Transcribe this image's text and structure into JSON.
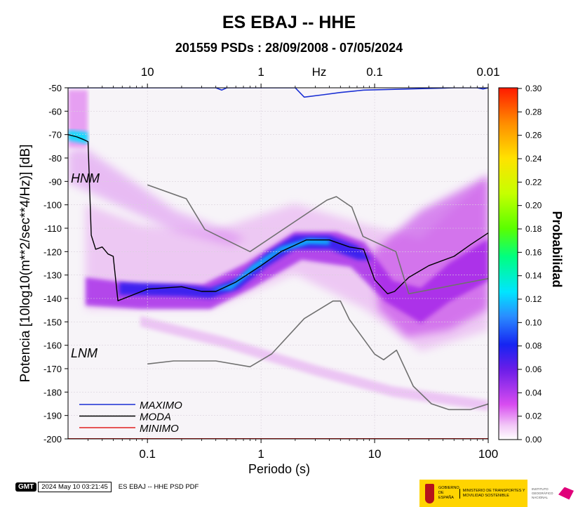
{
  "title": "ES EBAJ -- HHE",
  "subtitle": "201559 PSDs : 28/09/2008 - 07/05/2024",
  "chart_data": {
    "type": "heatmap",
    "title": "ES EBAJ -- HHE",
    "subtitle": "201559 PSDs : 28/09/2008 - 07/05/2024",
    "xlabel": "Periodo (s)",
    "ylabel": "Potencia [10log10(m**2/sec**4/Hz)] [dB]",
    "x_scale": "log",
    "xlim": [
      0.02,
      100
    ],
    "ylim": [
      -200,
      -50
    ],
    "x_ticks": [
      0.1,
      1,
      10,
      100
    ],
    "x_tick_labels": [
      "0.1",
      "1",
      "10",
      "100"
    ],
    "y_ticks": [
      -50,
      -60,
      -70,
      -80,
      -90,
      -100,
      -110,
      -120,
      -130,
      -140,
      -150,
      -160,
      -170,
      -180,
      -190,
      -200
    ],
    "top_axis": {
      "label": "Hz",
      "ticks": [
        10,
        1,
        0.1,
        0.01
      ],
      "tick_labels": [
        "10",
        "1",
        "0.1",
        "0.01"
      ]
    },
    "colorbar": {
      "label": "Probabilidad",
      "min": 0.0,
      "max": 0.3,
      "ticks": [
        "0.30",
        "0.28",
        "0.26",
        "0.24",
        "0.22",
        "0.20",
        "0.18",
        "0.16",
        "0.14",
        "0.12",
        "0.10",
        "0.08",
        "0.06",
        "0.04",
        "0.02",
        "0.00"
      ]
    },
    "annotations": [
      "HNM",
      "LNM"
    ],
    "legend": {
      "placement": "bottom-left",
      "entries": [
        {
          "name": "MAXIMO",
          "color": "#1a2fd4"
        },
        {
          "name": "MODA",
          "color": "#000000"
        },
        {
          "name": "MINIMO",
          "color": "#e02020"
        }
      ]
    },
    "series": [
      {
        "name": "MAXIMO",
        "color": "#1a2fd4",
        "x": [
          0.02,
          0.4,
          0.45,
          0.5,
          2.0,
          2.4,
          3.5,
          5,
          8,
          20,
          50,
          80,
          90,
          100
        ],
        "y": [
          -50,
          -50,
          -51,
          -50,
          -50,
          -54,
          -53,
          -52,
          -51,
          -50.5,
          -50,
          -50,
          -50.5,
          -50
        ]
      },
      {
        "name": "MODA",
        "color": "#000000",
        "x": [
          0.02,
          0.024,
          0.027,
          0.03,
          0.032,
          0.035,
          0.04,
          0.045,
          0.05,
          0.055,
          0.07,
          0.1,
          0.2,
          0.3,
          0.4,
          0.6,
          1,
          1.5,
          2.5,
          4,
          6,
          8,
          10,
          13,
          15,
          20,
          30,
          50,
          70,
          100
        ],
        "y": [
          -70,
          -71,
          -72,
          -73,
          -113,
          -119,
          -118,
          -121,
          -122,
          -141,
          -139,
          -136,
          -135,
          -137,
          -137,
          -133,
          -126,
          -120,
          -115,
          -115,
          -118,
          -119,
          -132,
          -138,
          -137,
          -131,
          -126,
          -122,
          -117,
          -112
        ]
      },
      {
        "name": "MINIMO",
        "color": "#e02020",
        "x": [
          0.02,
          100
        ],
        "y": [
          -200,
          -200
        ]
      },
      {
        "name": "HNM",
        "color": "#707070",
        "x": [
          0.1,
          0.22,
          0.32,
          0.8,
          3.8,
          4.6,
          6.3,
          7.9,
          15.4,
          20,
          100
        ],
        "y": [
          -91.5,
          -97.4,
          -110.5,
          -120,
          -98,
          -96.5,
          -101,
          -113.5,
          -120,
          -138,
          -131.5
        ]
      },
      {
        "name": "LNM",
        "color": "#707070",
        "x": [
          0.1,
          0.17,
          0.4,
          0.8,
          1.24,
          2.4,
          4.3,
          5,
          6,
          10,
          12,
          15.6,
          21.9,
          31.6,
          45,
          70,
          101
        ],
        "y": [
          -168,
          -166.7,
          -166.7,
          -169.2,
          -163.7,
          -148.6,
          -141.1,
          -141.1,
          -149,
          -163.8,
          -166.2,
          -162.1,
          -177.5,
          -185,
          -187.5,
          -187.5,
          -185
        ]
      }
    ]
  },
  "footer": {
    "logo": "GMT",
    "timestamp": "2024 May 10 03:21:45",
    "filename": "ES EBAJ -- HHE PSD PDF"
  },
  "logos": {
    "gobierno": "GOBIERNO DE ESPAÑA",
    "ministerio": "MINISTERIO DE TRANSPORTES Y MOVILIDAD SOSTENIBLE",
    "instituto": "INSTITUTO GEOGRÁFICO NACIONAL"
  }
}
